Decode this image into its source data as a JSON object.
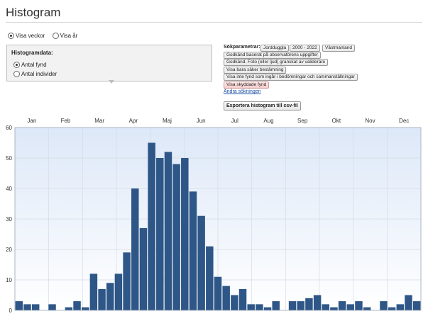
{
  "page": {
    "title": "Histogram"
  },
  "view_toggle": {
    "options": [
      "Visa veckor",
      "Visa år"
    ],
    "selected": 0
  },
  "histogram_data": {
    "heading": "Histogramdata:",
    "options": [
      "Antal fynd",
      "Antal individer"
    ],
    "selected": 0
  },
  "search_params": {
    "label": "Sökparametrar:",
    "chips": [
      "Jordduggla",
      "2000 - 2022",
      "Västmanland",
      "Godkänd baserat på observatörens uppgifter",
      "Godkänd. Foto (eller ljud) granskat av validerare",
      "Visa bara säker bestämning",
      "Visa inte fynd som ingår i bedömningar och sammanställningar",
      "Visa skyddade fynd"
    ],
    "change_link": "Ändra sökningen",
    "export_button": "Exportera histogram till csv-fil"
  },
  "colors": {
    "bar": "#2e5687",
    "plot_bg_top": "#dde8f8",
    "plot_bg_bottom": "#ffffff",
    "grid": "#d5dbe6"
  },
  "chart_data": {
    "type": "bar",
    "months": [
      "Jan",
      "Feb",
      "Mar",
      "Apr",
      "Maj",
      "Jun",
      "Jul",
      "Aug",
      "Sep",
      "Okt",
      "Nov",
      "Dec"
    ],
    "y_ticks": [
      0,
      10,
      20,
      30,
      40,
      50,
      60
    ],
    "ylim": [
      0,
      60
    ],
    "grid": true,
    "values": [
      3,
      2,
      2,
      0,
      2,
      0,
      1,
      3,
      1,
      12,
      7,
      9,
      12,
      19,
      40,
      27,
      55,
      50,
      52,
      48,
      50,
      39,
      31,
      21,
      11,
      8,
      5,
      7,
      2,
      2,
      1,
      3,
      0,
      3,
      3,
      4,
      5,
      2,
      1,
      3,
      2,
      3,
      1,
      0,
      3,
      1,
      2,
      5,
      3
    ]
  }
}
